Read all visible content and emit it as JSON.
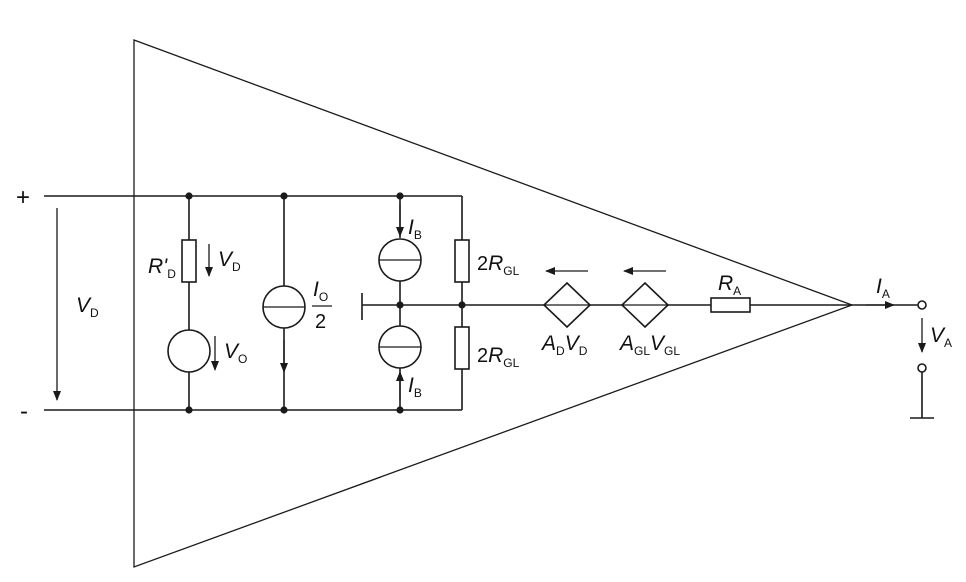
{
  "terminals": {
    "plus": "+",
    "minus": "-"
  },
  "labels": {
    "vd_input": {
      "main": "V",
      "sub": "D"
    },
    "r_prime_d": {
      "main": "R'",
      "sub": "D"
    },
    "vd_drop": {
      "main": "V",
      "sub": "D"
    },
    "v_offset": {
      "main": "V",
      "sub": "O"
    },
    "i_offset": {
      "main": "I",
      "sub": "O",
      "denominator": "2"
    },
    "ib_top": {
      "main": "I",
      "sub": "B"
    },
    "ib_bottom": {
      "main": "I",
      "sub": "B"
    },
    "r_gl_top": {
      "prefix": "2",
      "main": "R",
      "sub": "GL"
    },
    "r_gl_bottom": {
      "prefix": "2",
      "main": "R",
      "sub": "GL"
    },
    "ad_vd": {
      "main1": "A",
      "sub1": "D",
      "main2": "V",
      "sub2": "D"
    },
    "agl_vgl": {
      "main1": "A",
      "sub1": "GL",
      "main2": "V",
      "sub2": "GL"
    },
    "r_a": {
      "main": "R",
      "sub": "A"
    },
    "i_a": {
      "main": "I",
      "sub": "A"
    },
    "v_a": {
      "main": "V",
      "sub": "A"
    }
  }
}
